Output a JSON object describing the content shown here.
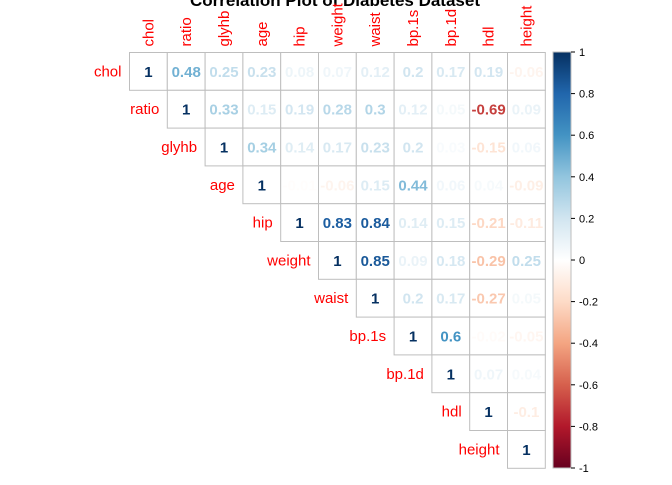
{
  "chart_data": {
    "type": "heatmap",
    "title": "Correlation Plot of Diabetes Dataset",
    "variables": [
      "chol",
      "ratio",
      "glyhb",
      "age",
      "hip",
      "weight",
      "waist",
      "bp.1s",
      "bp.1d",
      "hdl",
      "height"
    ],
    "matrix_upper": [
      [
        1,
        0.48,
        0.25,
        0.23,
        0.08,
        0.07,
        0.12,
        0.2,
        0.17,
        0.19,
        -0.06
      ],
      [
        null,
        1,
        0.33,
        0.15,
        0.19,
        0.28,
        0.3,
        0.12,
        0.05,
        -0.69,
        0.09
      ],
      [
        null,
        null,
        1,
        0.34,
        0.14,
        0.17,
        0.23,
        0.2,
        0.03,
        -0.15,
        0.06
      ],
      [
        null,
        null,
        null,
        1,
        -0.01,
        -0.06,
        0.15,
        0.44,
        0.06,
        0.04,
        -0.09
      ],
      [
        null,
        null,
        null,
        null,
        1,
        0.83,
        0.84,
        0.14,
        0.15,
        -0.21,
        -0.11
      ],
      [
        null,
        null,
        null,
        null,
        null,
        1,
        0.85,
        0.09,
        0.18,
        -0.29,
        0.25
      ],
      [
        null,
        null,
        null,
        null,
        null,
        null,
        1,
        0.2,
        0.17,
        -0.27,
        0.05
      ],
      [
        null,
        null,
        null,
        null,
        null,
        null,
        null,
        1,
        0.6,
        -0.02,
        -0.05
      ],
      [
        null,
        null,
        null,
        null,
        null,
        null,
        null,
        null,
        1,
        0.07,
        0.04
      ],
      [
        null,
        null,
        null,
        null,
        null,
        null,
        null,
        null,
        null,
        1,
        -0.1
      ],
      [
        null,
        null,
        null,
        null,
        null,
        null,
        null,
        null,
        null,
        null,
        1
      ]
    ],
    "colorbar": {
      "range": [
        -1,
        1
      ],
      "ticks": [
        -1,
        -0.8,
        -0.6,
        -0.4,
        -0.2,
        0,
        0.2,
        0.4,
        0.6,
        0.8,
        1
      ],
      "tick_labels": [
        "-1",
        "-0.8",
        "-0.6",
        "-0.4",
        "-0.2",
        "0",
        "0.2",
        "0.4",
        "0.6",
        "0.8",
        "1"
      ],
      "colors": [
        "#67001F",
        "#B2182B",
        "#D6604D",
        "#F4A582",
        "#FDDBC7",
        "#FFFFFF",
        "#D1E5F0",
        "#92C5DE",
        "#4393C3",
        "#2166AC",
        "#053061"
      ]
    },
    "label_color": "#FF0000",
    "grid_color": "#BEBEBE",
    "legend_position": "right"
  }
}
